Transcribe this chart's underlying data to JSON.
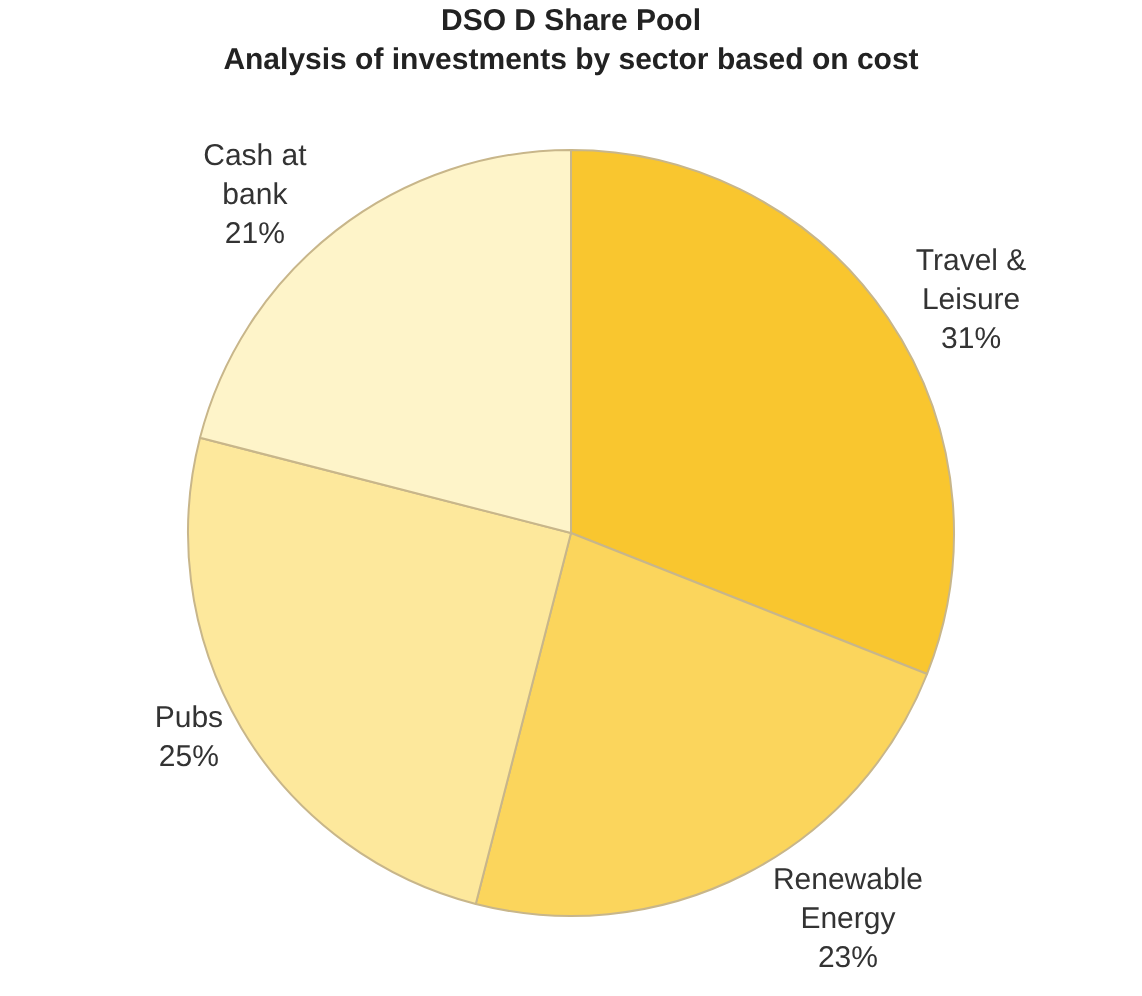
{
  "chart_data": {
    "type": "pie",
    "title": "DSO D Share Pool",
    "subtitle": "Analysis of investments by sector based on cost",
    "categories": [
      "Travel & Leisure",
      "Renewable Energy",
      "Pubs",
      "Cash at bank"
    ],
    "values": [
      31,
      23,
      25,
      21
    ],
    "value_labels": [
      "31%",
      "23%",
      "25%",
      "21%"
    ],
    "colors": [
      "#f9c62f",
      "#fbd55c",
      "#fde89c",
      "#fef4c9"
    ],
    "legend": false
  }
}
